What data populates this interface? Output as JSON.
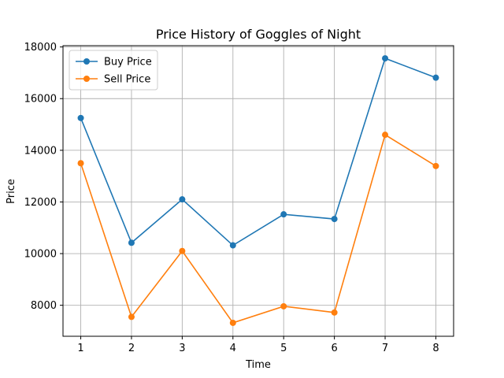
{
  "chart_data": {
    "type": "line",
    "title": "Price History of Goggles of Night",
    "xlabel": "Time",
    "ylabel": "Price",
    "x": [
      1,
      2,
      3,
      4,
      5,
      6,
      7,
      8
    ],
    "xlim": [
      0.65,
      8.35
    ],
    "ylim": [
      6800,
      18050
    ],
    "xticks": [
      "1",
      "2",
      "3",
      "4",
      "5",
      "6",
      "7",
      "8"
    ],
    "yticks": [
      8000,
      10000,
      12000,
      14000,
      16000,
      18000
    ],
    "grid": true,
    "legend_position": "top-left",
    "series": [
      {
        "name": "Buy Price",
        "color": "#1f77b4",
        "values": [
          15250,
          10420,
          12100,
          10320,
          11520,
          11340,
          17560,
          16810
        ]
      },
      {
        "name": "Sell Price",
        "color": "#ff7f0e",
        "values": [
          13500,
          7550,
          10100,
          7320,
          7960,
          7720,
          14600,
          13390
        ]
      }
    ]
  }
}
